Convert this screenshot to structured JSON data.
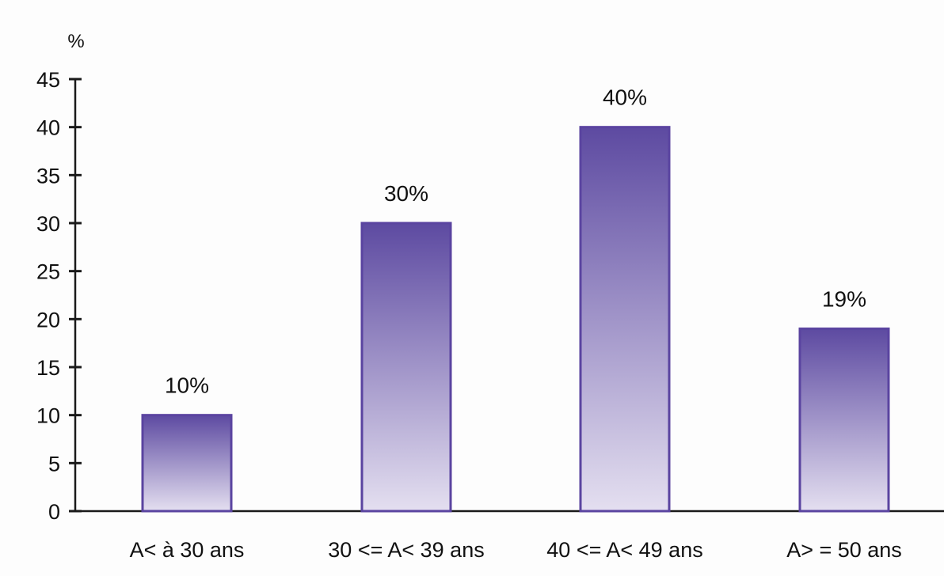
{
  "chart_data": {
    "type": "bar",
    "title": "",
    "xlabel": "",
    "ylabel": "%",
    "ylim": [
      0,
      45
    ],
    "yticks": [
      0,
      5,
      10,
      15,
      20,
      25,
      30,
      35,
      40,
      45
    ],
    "grid": false,
    "categories": [
      "A< à 30 ans",
      "30 <= A< 39 ans",
      "40 <= A< 49 ans",
      "A> = 50 ans"
    ],
    "values": [
      10,
      30,
      40,
      19
    ],
    "data_labels": [
      "10%",
      "30%",
      "40%",
      "19%"
    ],
    "colors": {
      "bar_top": "#5d4aa1",
      "bar_bottom": "#e4dff0",
      "bar_border": "#5a44a0",
      "axis": "#1a1a1a"
    }
  }
}
